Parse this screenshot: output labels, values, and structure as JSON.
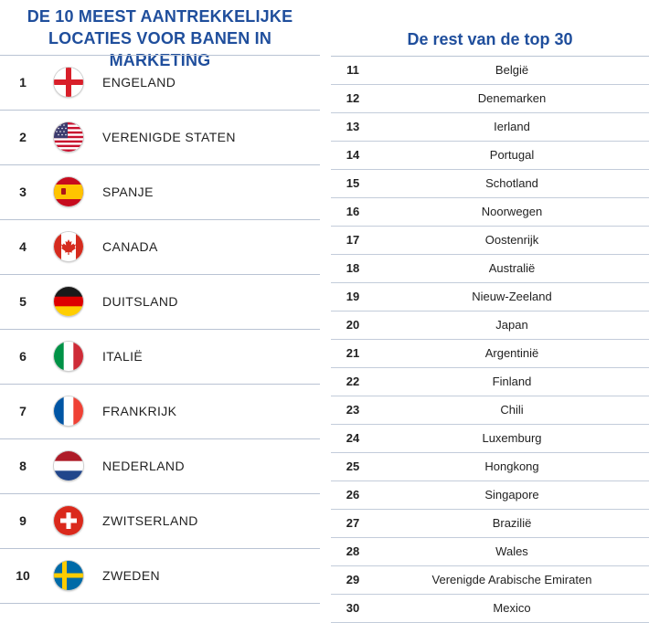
{
  "left": {
    "title_line1": "DE 10 MEEST AANTREKKELIJKE",
    "title_line2": "LOCATIES VOOR BANEN IN MARKETING",
    "items": [
      {
        "rank": "1",
        "country": "ENGELAND",
        "flag": "england-flag-icon"
      },
      {
        "rank": "2",
        "country": "VERENIGDE STATEN",
        "flag": "usa-flag-icon"
      },
      {
        "rank": "3",
        "country": "SPANJE",
        "flag": "spain-flag-icon"
      },
      {
        "rank": "4",
        "country": "CANADA",
        "flag": "canada-flag-icon"
      },
      {
        "rank": "5",
        "country": "DUITSLAND",
        "flag": "germany-flag-icon"
      },
      {
        "rank": "6",
        "country": "ITALIË",
        "flag": "italy-flag-icon"
      },
      {
        "rank": "7",
        "country": "FRANKRIJK",
        "flag": "france-flag-icon"
      },
      {
        "rank": "8",
        "country": "NEDERLAND",
        "flag": "netherlands-flag-icon"
      },
      {
        "rank": "9",
        "country": "ZWITSERLAND",
        "flag": "switzerland-flag-icon"
      },
      {
        "rank": "10",
        "country": "ZWEDEN",
        "flag": "sweden-flag-icon"
      }
    ]
  },
  "right": {
    "title": "De rest van de top 30",
    "items": [
      {
        "rank": "11",
        "country": "België"
      },
      {
        "rank": "12",
        "country": "Denemarken"
      },
      {
        "rank": "13",
        "country": "Ierland"
      },
      {
        "rank": "14",
        "country": "Portugal"
      },
      {
        "rank": "15",
        "country": "Schotland"
      },
      {
        "rank": "16",
        "country": "Noorwegen"
      },
      {
        "rank": "17",
        "country": "Oostenrijk"
      },
      {
        "rank": "18",
        "country": "Australië"
      },
      {
        "rank": "19",
        "country": "Nieuw-Zeeland"
      },
      {
        "rank": "20",
        "country": "Japan"
      },
      {
        "rank": "21",
        "country": "Argentinië"
      },
      {
        "rank": "22",
        "country": "Finland"
      },
      {
        "rank": "23",
        "country": "Chili"
      },
      {
        "rank": "24",
        "country": "Luxemburg"
      },
      {
        "rank": "25",
        "country": "Hongkong"
      },
      {
        "rank": "26",
        "country": "Singapore"
      },
      {
        "rank": "27",
        "country": "Brazilië"
      },
      {
        "rank": "28",
        "country": "Wales"
      },
      {
        "rank": "29",
        "country": "Verenigde Arabische Emiraten"
      },
      {
        "rank": "30",
        "country": "Mexico"
      }
    ]
  },
  "colors": {
    "title_blue": "#1f4e9c",
    "rule": "#b9c3d3"
  }
}
